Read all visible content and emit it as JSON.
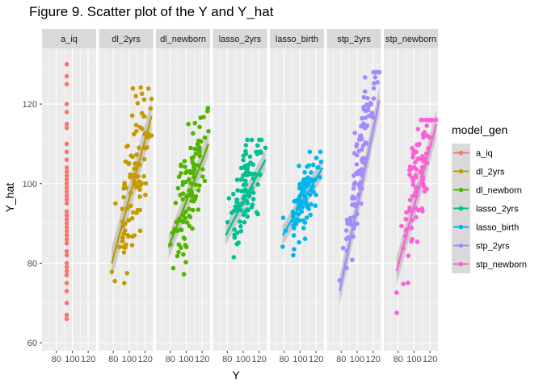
{
  "chart_data": {
    "type": "scatter",
    "title": "Figure 9. Scatter plot of the Y and Y_hat",
    "xlabel": "Y",
    "ylabel": "Y_hat",
    "xlim": [
      62,
      130
    ],
    "ylim": [
      58,
      134
    ],
    "x_ticks": [
      80,
      100,
      120
    ],
    "y_ticks": [
      60,
      80,
      100,
      120
    ],
    "legend_title": "model_gen",
    "legend_position": "right",
    "colors": {
      "panel_bg": "#ebebeb",
      "strip_bg": "#d9d9d9",
      "grid": "#ffffff",
      "ribbon": "#bdbdbd"
    },
    "panels": [
      {
        "name": "a_iq",
        "color": "#F8766D",
        "seed": 11,
        "mode": "const",
        "label_x": 93,
        "y_values": [
          130,
          127,
          125,
          120,
          118,
          115,
          114,
          110,
          108,
          106,
          104,
          103,
          102,
          101,
          100,
          99,
          98,
          97,
          96,
          95,
          93,
          92,
          91,
          90,
          89,
          88,
          87,
          86,
          85,
          83,
          82,
          80,
          79,
          78,
          77,
          75,
          73,
          70,
          67,
          66
        ]
      },
      {
        "name": "dl_2yrs",
        "color": "#C49A00",
        "seed": 23,
        "mode": "cloud",
        "n": 100,
        "a": 23,
        "b": 0.73,
        "noise": 8,
        "y_min": 75,
        "y_max": 125,
        "fit": [
          80,
          117
        ],
        "ribbon": 4
      },
      {
        "name": "dl_newborn",
        "color": "#53B400",
        "seed": 37,
        "mode": "cloud",
        "n": 100,
        "a": 24,
        "b": 0.72,
        "noise": 7,
        "y_min": 72,
        "y_max": 119,
        "fit": [
          84,
          110
        ],
        "ribbon": 3
      },
      {
        "name": "lasso_2yrs",
        "color": "#00C094",
        "seed": 41,
        "mode": "cloud",
        "n": 100,
        "a": 53,
        "b": 0.44,
        "noise": 5,
        "y_min": 76,
        "y_max": 111,
        "fit": [
          87,
          106
        ],
        "ribbon": 2.5
      },
      {
        "name": "lasso_birth",
        "color": "#00B6EB",
        "seed": 53,
        "mode": "cloud",
        "n": 100,
        "a": 55,
        "b": 0.4,
        "noise": 4,
        "y_min": 75,
        "y_max": 108,
        "fit": [
          87,
          104
        ],
        "ribbon": 2.5
      },
      {
        "name": "stp_2yrs",
        "color": "#A58AFF",
        "seed": 67,
        "mode": "cloud",
        "n": 100,
        "a": -14,
        "b": 1.14,
        "noise": 6,
        "y_min": 62,
        "y_max": 128,
        "fit": [
          73,
          121
        ],
        "ribbon": 3.5
      },
      {
        "name": "stp_newborn",
        "color": "#FB61D7",
        "seed": 79,
        "mode": "cloud",
        "n": 100,
        "a": 12,
        "b": 0.87,
        "noise": 7,
        "y_min": 61,
        "y_max": 116,
        "fit": [
          78,
          115
        ],
        "ribbon": 3.5
      }
    ]
  }
}
